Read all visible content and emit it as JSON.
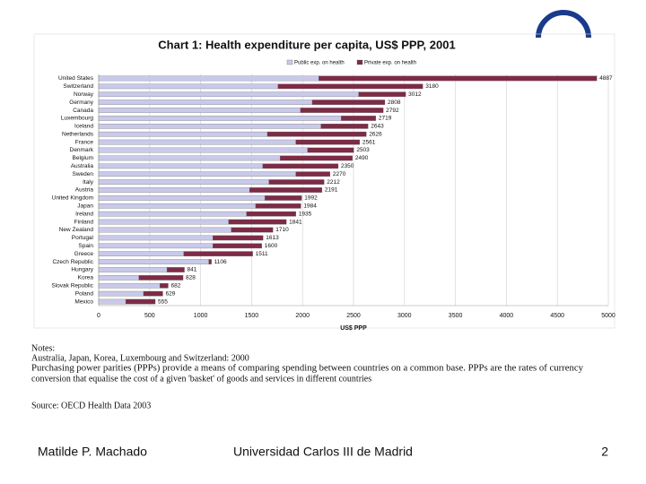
{
  "chart_data": {
    "type": "bar",
    "orientation": "horizontal",
    "stacked": true,
    "title": "Chart 1: Health expenditure per capita, US$ PPP, 2001",
    "categories": [
      "United States",
      "Switzerland",
      "Norway",
      "Germany",
      "Canada",
      "Luxembourg",
      "Iceland",
      "Netherlands",
      "France",
      "Denmark",
      "Belgium",
      "Australia",
      "Sweden",
      "Italy",
      "Austria",
      "United Kingdom",
      "Japan",
      "Ireland",
      "Finland",
      "New Zealand",
      "Portugal",
      "Spain",
      "Greece",
      "Czech Republic",
      "Hungary",
      "Korea",
      "Slovak Republic",
      "Poland",
      "Mexico"
    ],
    "series": [
      {
        "name": "Public exp. on health",
        "color": "#c9c9ea",
        "values": [
          2160,
          1760,
          2550,
          2095,
          1980,
          2380,
          2180,
          1655,
          1935,
          2050,
          1780,
          1610,
          1935,
          1670,
          1480,
          1630,
          1540,
          1450,
          1275,
          1300,
          1120,
          1120,
          835,
          1080,
          670,
          395,
          600,
          440,
          265
        ]
      },
      {
        "name": "Private exp. on health",
        "color": "#7d2b47",
        "values": [
          2727,
          1420,
          462,
          713,
          812,
          339,
          463,
          971,
          626,
          453,
          710,
          740,
          335,
          542,
          711,
          362,
          444,
          485,
          566,
          410,
          493,
          480,
          676,
          26,
          171,
          433,
          82,
          189,
          290
        ]
      }
    ],
    "totals": [
      4887,
      3180,
      3012,
      2808,
      2792,
      2719,
      2643,
      2626,
      2561,
      2503,
      2490,
      2350,
      2270,
      2212,
      2191,
      1992,
      1984,
      1935,
      1841,
      1710,
      1613,
      1600,
      1511,
      1106,
      841,
      828,
      682,
      629,
      555
    ],
    "x_label": "US$ PPP",
    "xlim": [
      0,
      5000
    ],
    "xticks": [
      0,
      500,
      1000,
      1500,
      2000,
      2500,
      3000,
      3500,
      4000,
      4500,
      5000
    ],
    "grid": true
  },
  "notes": {
    "heading": "Notes:",
    "lines": [
      "Australia, Japan, Korea, Luxembourg and Switzerland: 2000",
      "Purchasing power parities (PPPs) provide a means of comparing spending between countries on a common base. PPPs are the rates of currency",
      "conversion that equalise the cost of a given 'basket' of goods and services in different countries"
    ],
    "source": "Source: OECD Health Data 2003"
  },
  "footer": {
    "author": "Matilde P. Machado",
    "institution": "Universidad Carlos III de Madrid",
    "page": "2"
  }
}
